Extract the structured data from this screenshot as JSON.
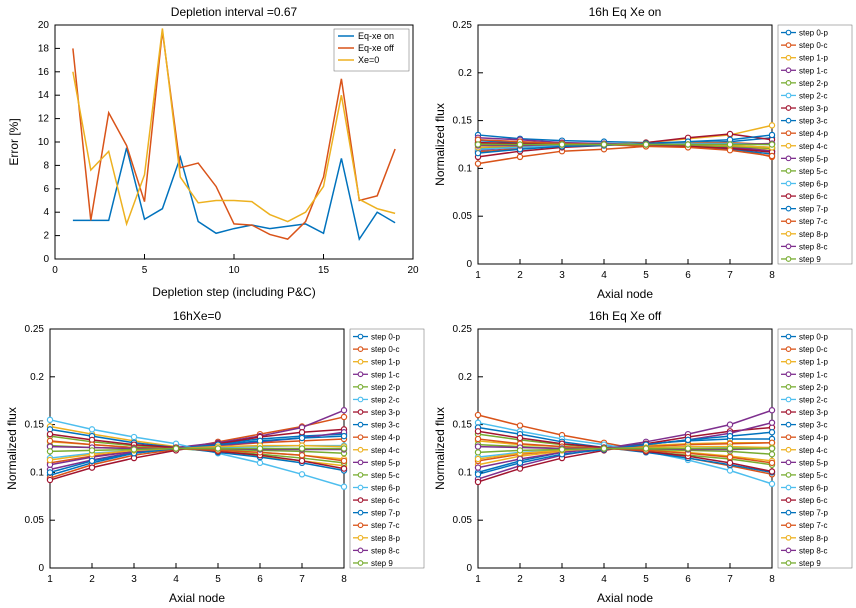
{
  "colors": {
    "palette": [
      "#0072bd",
      "#d95319",
      "#edb120",
      "#7e2f8e",
      "#77ac30",
      "#4dbeee",
      "#a2142f"
    ],
    "bg": "#ffffff",
    "axis": "#000000"
  },
  "panelA": {
    "title": "Depletion interval =0.67",
    "xlabel": "Depletion step (including P&C)",
    "ylabel": "Error [%]",
    "xlim": [
      0,
      20
    ],
    "xtick_step": 5,
    "ylim": [
      0,
      20
    ],
    "ytick_step": 2,
    "legend": [
      "Eq-xe on",
      "Eq-xe off",
      "Xe=0"
    ],
    "series": [
      {
        "name": "Eq-xe on",
        "color": "#0072bd",
        "x": [
          1,
          2,
          3,
          4,
          5,
          6,
          7,
          8,
          9,
          10,
          11,
          12,
          13,
          14,
          15,
          16,
          17,
          18,
          19
        ],
        "y": [
          3.3,
          3.3,
          3.3,
          9.5,
          3.4,
          4.3,
          8.7,
          3.2,
          2.2,
          2.6,
          2.9,
          2.6,
          2.8,
          3.0,
          2.2,
          8.6,
          1.7,
          4.0,
          3.1
        ]
      },
      {
        "name": "Eq-xe off",
        "color": "#d95319",
        "x": [
          1,
          2,
          3,
          4,
          5,
          6,
          7,
          8,
          9,
          10,
          11,
          12,
          13,
          14,
          15,
          16,
          17,
          18,
          19
        ],
        "y": [
          18.0,
          3.3,
          12.5,
          9.7,
          4.9,
          19.5,
          7.8,
          8.2,
          6.2,
          3.0,
          2.9,
          2.1,
          1.7,
          3.2,
          7.0,
          15.4,
          5.0,
          5.4,
          9.4
        ]
      },
      {
        "name": "Xe=0",
        "color": "#edb120",
        "x": [
          1,
          2,
          3,
          4,
          5,
          6,
          7,
          8,
          9,
          10,
          11,
          12,
          13,
          14,
          15,
          16,
          17,
          18,
          19
        ],
        "y": [
          16.0,
          7.6,
          9.2,
          3.0,
          7.2,
          19.7,
          7.0,
          4.8,
          5.0,
          5.0,
          4.9,
          3.8,
          3.2,
          4.0,
          6.2,
          14.0,
          5.1,
          4.3,
          3.9
        ]
      }
    ]
  },
  "flux_legend_labels": [
    "step 0-p",
    "step 0-c",
    "step 1-p",
    "step 1-c",
    "step 2-p",
    "step 2-c",
    "step 3-p",
    "step 3-c",
    "step 4-p",
    "step 4-c",
    "step 5-p",
    "step 5-c",
    "step 6-p",
    "step 6-c",
    "step 7-p",
    "step 7-c",
    "step 8-p",
    "step 8-c",
    "step 9"
  ],
  "flux_common": {
    "xlabel": "Axial node",
    "ylabel": "Normalized flux",
    "xlim": [
      1,
      8
    ],
    "xtick_step": 1,
    "ylim": [
      0,
      0.25
    ],
    "ytick_step": 0.05,
    "x": [
      1,
      2,
      3,
      4,
      5,
      6,
      7,
      8
    ]
  },
  "panelB": {
    "title": "16h Eq Xe on",
    "series": [
      {
        "c": "#0072bd",
        "y": [
          0.135,
          0.131,
          0.129,
          0.128,
          0.127,
          0.127,
          0.128,
          0.132
        ]
      },
      {
        "c": "#d95319",
        "y": [
          0.105,
          0.112,
          0.118,
          0.12,
          0.123,
          0.124,
          0.122,
          0.112
        ]
      },
      {
        "c": "#edb120",
        "y": [
          0.118,
          0.124,
          0.126,
          0.125,
          0.127,
          0.131,
          0.135,
          0.145
        ]
      },
      {
        "c": "#7e2f8e",
        "y": [
          0.132,
          0.13,
          0.127,
          0.126,
          0.125,
          0.124,
          0.122,
          0.118
        ]
      },
      {
        "c": "#77ac30",
        "y": [
          0.121,
          0.123,
          0.124,
          0.125,
          0.125,
          0.125,
          0.124,
          0.122
        ]
      },
      {
        "c": "#4dbeee",
        "y": [
          0.126,
          0.126,
          0.125,
          0.125,
          0.125,
          0.124,
          0.123,
          0.121
        ]
      },
      {
        "c": "#a2142f",
        "y": [
          0.112,
          0.118,
          0.122,
          0.124,
          0.127,
          0.132,
          0.136,
          0.13
        ]
      },
      {
        "c": "#0072bd",
        "y": [
          0.129,
          0.127,
          0.126,
          0.125,
          0.124,
          0.123,
          0.12,
          0.115
        ]
      },
      {
        "c": "#d95319",
        "y": [
          0.117,
          0.121,
          0.123,
          0.125,
          0.126,
          0.127,
          0.127,
          0.125
        ]
      },
      {
        "c": "#edb120",
        "y": [
          0.126,
          0.126,
          0.126,
          0.125,
          0.125,
          0.124,
          0.123,
          0.12
        ]
      },
      {
        "c": "#7e2f8e",
        "y": [
          0.119,
          0.122,
          0.124,
          0.125,
          0.125,
          0.125,
          0.123,
          0.118
        ]
      },
      {
        "c": "#77ac30",
        "y": [
          0.125,
          0.125,
          0.125,
          0.125,
          0.125,
          0.124,
          0.123,
          0.121
        ]
      },
      {
        "c": "#4dbeee",
        "y": [
          0.12,
          0.122,
          0.124,
          0.125,
          0.126,
          0.126,
          0.126,
          0.125
        ]
      },
      {
        "c": "#a2142f",
        "y": [
          0.127,
          0.126,
          0.126,
          0.125,
          0.124,
          0.123,
          0.121,
          0.117
        ]
      },
      {
        "c": "#0072bd",
        "y": [
          0.116,
          0.12,
          0.123,
          0.124,
          0.126,
          0.128,
          0.13,
          0.135
        ]
      },
      {
        "c": "#d95319",
        "y": [
          0.13,
          0.128,
          0.126,
          0.125,
          0.123,
          0.122,
          0.119,
          0.113
        ]
      },
      {
        "c": "#edb120",
        "y": [
          0.122,
          0.124,
          0.125,
          0.125,
          0.125,
          0.125,
          0.124,
          0.122
        ]
      },
      {
        "c": "#7e2f8e",
        "y": [
          0.124,
          0.124,
          0.125,
          0.125,
          0.125,
          0.125,
          0.125,
          0.126
        ]
      },
      {
        "c": "#77ac30",
        "y": [
          0.125,
          0.125,
          0.125,
          0.125,
          0.125,
          0.125,
          0.125,
          0.125
        ]
      }
    ]
  },
  "panelC": {
    "title": "16hXe=0",
    "series": [
      {
        "c": "#0072bd",
        "y": [
          0.097,
          0.11,
          0.12,
          0.125,
          0.13,
          0.135,
          0.138,
          0.14
        ]
      },
      {
        "c": "#d95319",
        "y": [
          0.094,
          0.108,
          0.118,
          0.124,
          0.132,
          0.14,
          0.148,
          0.158
        ]
      },
      {
        "c": "#edb120",
        "y": [
          0.148,
          0.14,
          0.133,
          0.127,
          0.122,
          0.117,
          0.112,
          0.107
        ]
      },
      {
        "c": "#7e2f8e",
        "y": [
          0.103,
          0.113,
          0.121,
          0.126,
          0.131,
          0.138,
          0.147,
          0.165
        ]
      },
      {
        "c": "#77ac30",
        "y": [
          0.138,
          0.132,
          0.128,
          0.125,
          0.122,
          0.119,
          0.115,
          0.11
        ]
      },
      {
        "c": "#4dbeee",
        "y": [
          0.155,
          0.145,
          0.137,
          0.13,
          0.12,
          0.11,
          0.098,
          0.085
        ]
      },
      {
        "c": "#a2142f",
        "y": [
          0.092,
          0.105,
          0.115,
          0.123,
          0.13,
          0.137,
          0.142,
          0.145
        ]
      },
      {
        "c": "#0072bd",
        "y": [
          0.145,
          0.138,
          0.131,
          0.126,
          0.121,
          0.116,
          0.11,
          0.102
        ]
      },
      {
        "c": "#d95319",
        "y": [
          0.11,
          0.117,
          0.122,
          0.125,
          0.128,
          0.131,
          0.133,
          0.135
        ]
      },
      {
        "c": "#edb120",
        "y": [
          0.132,
          0.129,
          0.126,
          0.125,
          0.123,
          0.121,
          0.118,
          0.114
        ]
      },
      {
        "c": "#7e2f8e",
        "y": [
          0.108,
          0.116,
          0.122,
          0.125,
          0.128,
          0.132,
          0.136,
          0.142
        ]
      },
      {
        "c": "#77ac30",
        "y": [
          0.128,
          0.126,
          0.125,
          0.125,
          0.124,
          0.123,
          0.122,
          0.12
        ]
      },
      {
        "c": "#4dbeee",
        "y": [
          0.115,
          0.12,
          0.123,
          0.125,
          0.126,
          0.127,
          0.128,
          0.128
        ]
      },
      {
        "c": "#a2142f",
        "y": [
          0.14,
          0.134,
          0.129,
          0.126,
          0.122,
          0.118,
          0.112,
          0.104
        ]
      },
      {
        "c": "#0072bd",
        "y": [
          0.1,
          0.112,
          0.12,
          0.125,
          0.129,
          0.133,
          0.136,
          0.138
        ]
      },
      {
        "c": "#d95319",
        "y": [
          0.133,
          0.129,
          0.126,
          0.125,
          0.123,
          0.121,
          0.118,
          0.112
        ]
      },
      {
        "c": "#edb120",
        "y": [
          0.113,
          0.119,
          0.123,
          0.125,
          0.127,
          0.128,
          0.128,
          0.127
        ]
      },
      {
        "c": "#7e2f8e",
        "y": [
          0.127,
          0.126,
          0.125,
          0.125,
          0.125,
          0.124,
          0.124,
          0.124
        ]
      },
      {
        "c": "#77ac30",
        "y": [
          0.122,
          0.123,
          0.124,
          0.125,
          0.125,
          0.125,
          0.125,
          0.125
        ]
      }
    ]
  },
  "panelD": {
    "title": "16h Eq Xe off",
    "series": [
      {
        "c": "#0072bd",
        "y": [
          0.1,
          0.112,
          0.121,
          0.126,
          0.13,
          0.133,
          0.135,
          0.135
        ]
      },
      {
        "c": "#d95319",
        "y": [
          0.16,
          0.149,
          0.139,
          0.131,
          0.123,
          0.115,
          0.107,
          0.098
        ]
      },
      {
        "c": "#edb120",
        "y": [
          0.108,
          0.117,
          0.122,
          0.125,
          0.128,
          0.13,
          0.131,
          0.131
        ]
      },
      {
        "c": "#7e2f8e",
        "y": [
          0.093,
          0.107,
          0.118,
          0.125,
          0.132,
          0.14,
          0.15,
          0.165
        ]
      },
      {
        "c": "#77ac30",
        "y": [
          0.14,
          0.134,
          0.129,
          0.126,
          0.122,
          0.118,
          0.114,
          0.108
        ]
      },
      {
        "c": "#4dbeee",
        "y": [
          0.152,
          0.143,
          0.135,
          0.129,
          0.122,
          0.113,
          0.102,
          0.088
        ]
      },
      {
        "c": "#a2142f",
        "y": [
          0.09,
          0.104,
          0.115,
          0.123,
          0.13,
          0.137,
          0.143,
          0.147
        ]
      },
      {
        "c": "#0072bd",
        "y": [
          0.147,
          0.14,
          0.132,
          0.126,
          0.121,
          0.115,
          0.108,
          0.1
        ]
      },
      {
        "c": "#d95319",
        "y": [
          0.112,
          0.119,
          0.123,
          0.125,
          0.127,
          0.129,
          0.13,
          0.131
        ]
      },
      {
        "c": "#edb120",
        "y": [
          0.133,
          0.129,
          0.127,
          0.125,
          0.123,
          0.121,
          0.117,
          0.112
        ]
      },
      {
        "c": "#7e2f8e",
        "y": [
          0.105,
          0.114,
          0.121,
          0.125,
          0.129,
          0.134,
          0.141,
          0.152
        ]
      },
      {
        "c": "#77ac30",
        "y": [
          0.129,
          0.127,
          0.125,
          0.125,
          0.124,
          0.123,
          0.122,
          0.119
        ]
      },
      {
        "c": "#4dbeee",
        "y": [
          0.116,
          0.121,
          0.123,
          0.125,
          0.126,
          0.127,
          0.126,
          0.125
        ]
      },
      {
        "c": "#a2142f",
        "y": [
          0.143,
          0.136,
          0.13,
          0.126,
          0.122,
          0.117,
          0.11,
          0.101
        ]
      },
      {
        "c": "#0072bd",
        "y": [
          0.098,
          0.11,
          0.119,
          0.124,
          0.129,
          0.134,
          0.138,
          0.142
        ]
      },
      {
        "c": "#d95319",
        "y": [
          0.135,
          0.13,
          0.127,
          0.125,
          0.123,
          0.12,
          0.116,
          0.11
        ]
      },
      {
        "c": "#edb120",
        "y": [
          0.114,
          0.12,
          0.123,
          0.125,
          0.126,
          0.127,
          0.127,
          0.126
        ]
      },
      {
        "c": "#7e2f8e",
        "y": [
          0.127,
          0.126,
          0.125,
          0.125,
          0.125,
          0.124,
          0.124,
          0.125
        ]
      },
      {
        "c": "#77ac30",
        "y": [
          0.121,
          0.123,
          0.124,
          0.125,
          0.125,
          0.125,
          0.125,
          0.125
        ]
      }
    ]
  }
}
